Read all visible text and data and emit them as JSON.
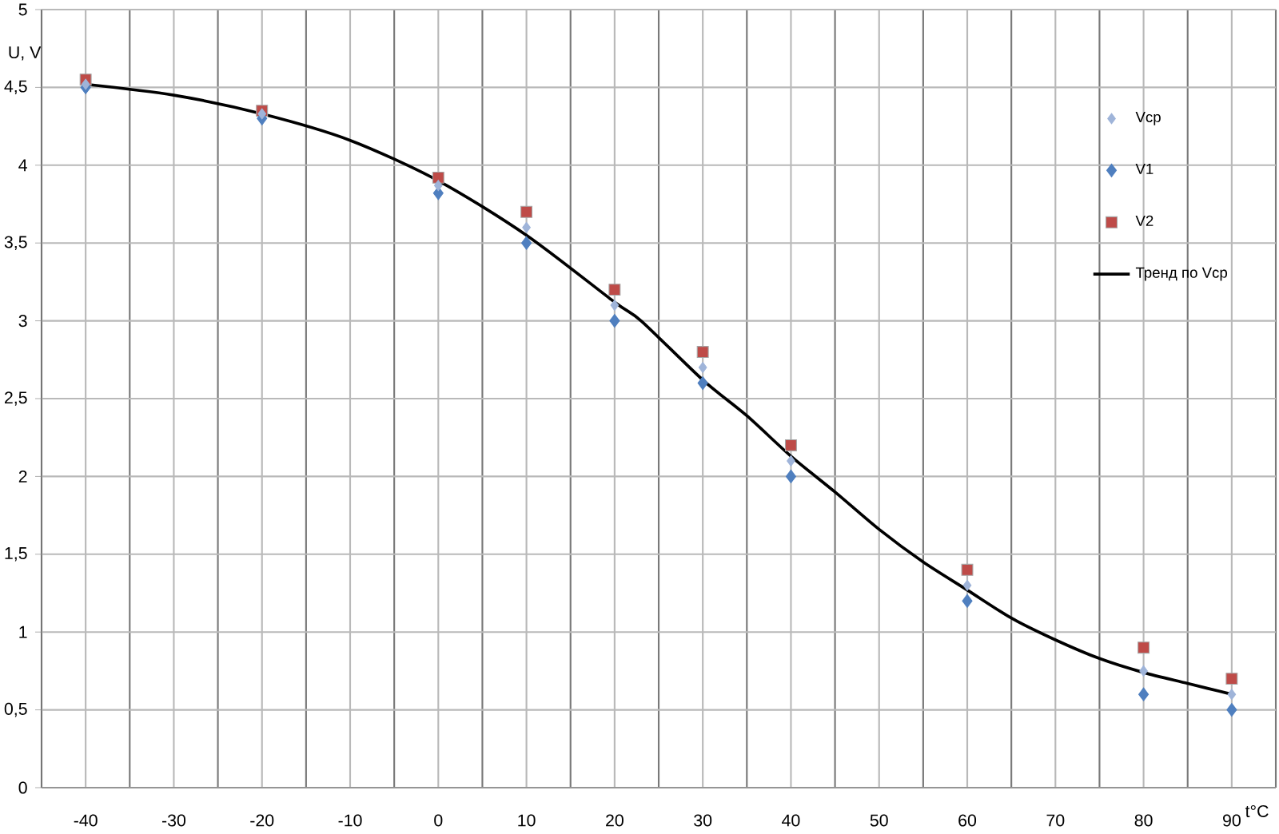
{
  "chart_data": {
    "type": "scatter",
    "xlabel": "t°C",
    "ylabel": "U, V",
    "x": [
      -40,
      -20,
      0,
      10,
      20,
      30,
      40,
      60,
      80,
      90
    ],
    "series": [
      {
        "name": "Vcp",
        "color": "#9fb4d9",
        "marker": "diamond",
        "values": [
          4.52,
          4.33,
          3.87,
          3.6,
          3.1,
          2.7,
          2.1,
          1.3,
          0.75,
          0.6
        ]
      },
      {
        "name": "V1",
        "color": "#4f7fbf",
        "marker": "diamond",
        "values": [
          4.5,
          4.3,
          3.82,
          3.5,
          3.0,
          2.6,
          2.0,
          1.2,
          0.6,
          0.5
        ]
      },
      {
        "name": "V2",
        "color": "#be4b48",
        "marker": "square",
        "values": [
          4.55,
          4.35,
          3.92,
          3.7,
          3.2,
          2.8,
          2.2,
          1.4,
          0.9,
          0.7
        ]
      },
      {
        "name": "Тренд по Vcp",
        "type": "line",
        "color": "#000000",
        "marker": "none",
        "x": [
          -40,
          -30,
          -20,
          -10,
          0,
          10,
          20,
          23,
          30,
          35,
          40,
          45,
          50,
          55,
          60,
          65,
          70,
          75,
          80,
          85,
          90
        ],
        "values": [
          4.52,
          4.45,
          4.33,
          4.16,
          3.9,
          3.55,
          3.12,
          3.0,
          2.62,
          2.39,
          2.13,
          1.9,
          1.66,
          1.45,
          1.27,
          1.09,
          0.95,
          0.83,
          0.74,
          0.67,
          0.6
        ]
      }
    ],
    "xlim": [
      -45,
      95
    ],
    "ylim": [
      0,
      5
    ],
    "xticks": [
      -40,
      -30,
      -20,
      -10,
      0,
      10,
      20,
      30,
      40,
      50,
      60,
      70,
      80,
      90
    ],
    "yticks": [
      0,
      {
        "value": 0.5,
        "label": "0,5"
      },
      1,
      {
        "value": 1.5,
        "label": "1,5"
      },
      2,
      {
        "value": 2.5,
        "label": "2,5"
      },
      3,
      {
        "value": 3.5,
        "label": "3,5"
      },
      4,
      {
        "value": 4.5,
        "label": "4,5"
      },
      5
    ],
    "grid": true,
    "legend": "top right"
  }
}
